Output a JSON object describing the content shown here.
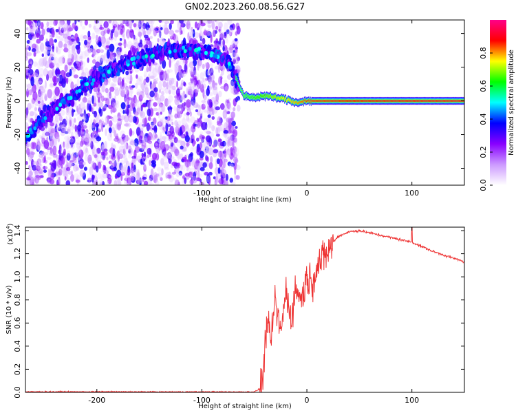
{
  "title": "GN02.2023.260.08.56.G27",
  "chart_data": [
    {
      "type": "heatmap",
      "xlabel": "Height of straight line (km)",
      "ylabel": "Frequency (Hz)",
      "xlim": [
        -268,
        150
      ],
      "ylim": [
        -50,
        48
      ],
      "x_ticks": [
        -200,
        -100,
        0,
        100
      ],
      "y_ticks": [
        -40,
        -20,
        0,
        20,
        40
      ],
      "colorbar": {
        "label": "Normalized spectral amplitude",
        "range": [
          0,
          1
        ],
        "ticks": [
          0.0,
          0.2,
          0.4,
          0.6,
          0.8
        ],
        "colors": [
          "#ffffff",
          "#cc99ff",
          "#8800ff",
          "#0000ff",
          "#00ffff",
          "#00ff00",
          "#ffff00",
          "#ff0000",
          "#ff0088"
        ]
      },
      "ridge": {
        "x": [
          -268,
          -250,
          -230,
          -210,
          -190,
          -170,
          -150,
          -130,
          -110,
          -90,
          -75,
          -68,
          -60,
          -50,
          -40,
          -30,
          -20,
          -10,
          0,
          50,
          100,
          150
        ],
        "y": [
          -22,
          -10,
          0,
          9,
          17,
          23,
          27,
          30,
          30,
          28,
          24,
          14,
          3,
          2,
          3,
          2,
          1,
          -1,
          0,
          0,
          0,
          0
        ],
        "amplitude": [
          0.3,
          0.35,
          0.4,
          0.4,
          0.42,
          0.45,
          0.45,
          0.45,
          0.42,
          0.38,
          0.3,
          0.45,
          0.55,
          0.6,
          0.65,
          0.7,
          0.75,
          0.8,
          0.85,
          0.88,
          0.9,
          0.9
        ]
      },
      "noise_extent_x": [
        -268,
        -65
      ]
    },
    {
      "type": "line",
      "xlabel": "Height of straight line (km)",
      "ylabel": "SNR (10 * v/v)",
      "y_multiplier_label": "(x10",
      "y_multiplier_exp": "4",
      "xlim": [
        -268,
        150
      ],
      "ylim": [
        0,
        14300
      ],
      "x_ticks": [
        -200,
        -100,
        0,
        100
      ],
      "y_ticks": [
        0.0,
        0.2,
        0.4,
        0.6,
        0.8,
        1.0,
        1.2,
        1.4
      ],
      "color": "#ee3333",
      "x": [
        -268,
        -200,
        -100,
        -50,
        -45,
        -42,
        -40,
        -38,
        -35,
        -30,
        -25,
        -20,
        -15,
        -10,
        -5,
        0,
        5,
        10,
        15,
        20,
        25,
        30,
        40,
        50,
        60,
        70,
        80,
        90,
        100,
        110,
        120,
        130,
        140,
        150
      ],
      "y": [
        50,
        50,
        40,
        40,
        300,
        1200,
        3500,
        6500,
        4000,
        8000,
        5000,
        8800,
        6500,
        9000,
        8000,
        10000,
        9500,
        11000,
        11500,
        12200,
        13000,
        13500,
        13900,
        14000,
        13800,
        13600,
        13400,
        13200,
        13000,
        12600,
        12200,
        11900,
        11600,
        11300
      ]
    }
  ]
}
